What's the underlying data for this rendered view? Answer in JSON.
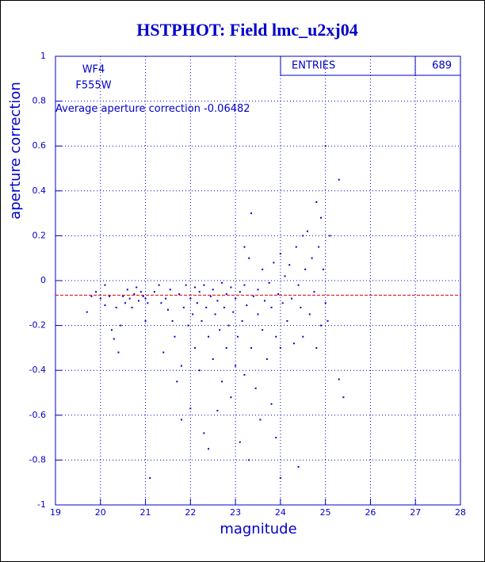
{
  "chart_data": {
    "type": "scatter",
    "title": "HSTPHOT: Field lmc_u2xj04",
    "x_label": "magnitude",
    "y_label": "aperture correction",
    "filter_labels": [
      "WF4",
      "F555W"
    ],
    "average_label": "Average aperture correction",
    "average": -0.06482,
    "average_line_color": "#dd0000",
    "stats_label": "ENTRIES",
    "entries": 689,
    "color": "#0000cc",
    "grid": true,
    "xlim": [
      19,
      28
    ],
    "ylim": [
      -1,
      1
    ],
    "xticks": [
      19,
      20,
      21,
      22,
      23,
      24,
      25,
      26,
      27,
      28
    ],
    "yticks": [
      -1,
      -0.8,
      -0.6,
      -0.4,
      -0.2,
      0,
      0.2,
      0.4,
      0.6,
      0.8,
      1
    ],
    "x": [
      19.7,
      19.8,
      19.9,
      20.0,
      20.1,
      20.1,
      20.2,
      20.25,
      20.3,
      20.35,
      20.4,
      20.45,
      20.5,
      20.55,
      20.6,
      20.65,
      20.7,
      20.75,
      20.8,
      20.85,
      20.9,
      20.95,
      21.0,
      21.0,
      21.05,
      21.1,
      21.2,
      21.3,
      21.35,
      21.4,
      21.45,
      21.5,
      21.55,
      21.6,
      21.65,
      21.7,
      21.75,
      21.8,
      21.8,
      21.85,
      21.9,
      21.95,
      22.0,
      22.0,
      22.05,
      22.1,
      22.1,
      22.15,
      22.2,
      22.2,
      22.25,
      22.3,
      22.3,
      22.35,
      22.4,
      22.4,
      22.45,
      22.5,
      22.5,
      22.55,
      22.6,
      22.6,
      22.65,
      22.7,
      22.7,
      22.75,
      22.8,
      22.8,
      22.85,
      22.9,
      22.9,
      22.95,
      23.0,
      23.0,
      23.05,
      23.1,
      23.1,
      23.15,
      23.2,
      23.2,
      23.25,
      23.3,
      23.3,
      23.35,
      23.4,
      23.45,
      23.5,
      23.5,
      23.55,
      23.6,
      23.6,
      23.65,
      23.7,
      23.75,
      23.8,
      23.8,
      23.85,
      23.9,
      23.9,
      23.95,
      24.0,
      24.0,
      24.0,
      24.05,
      23.35,
      23.2,
      24.1,
      24.15,
      24.2,
      24.25,
      24.3,
      24.35,
      24.4,
      24.45,
      24.5,
      24.5,
      24.55,
      24.6,
      24.65,
      24.7,
      24.75,
      24.8,
      24.8,
      24.85,
      24.9,
      24.9,
      24.95,
      25.0,
      25.0,
      25.05,
      25.1,
      25.3,
      25.3,
      25.4,
      24.4
    ],
    "values": [
      -0.14,
      -0.07,
      -0.05,
      -0.08,
      -0.11,
      -0.02,
      -0.07,
      -0.22,
      -0.26,
      -0.12,
      -0.32,
      -0.2,
      -0.07,
      -0.1,
      -0.04,
      -0.08,
      -0.12,
      -0.06,
      -0.03,
      -0.09,
      -0.05,
      -0.07,
      -0.18,
      -0.08,
      -0.1,
      -0.88,
      -0.05,
      -0.02,
      -0.1,
      -0.32,
      -0.08,
      -0.13,
      -0.04,
      -0.18,
      -0.25,
      -0.45,
      -0.06,
      -0.38,
      -0.62,
      -0.12,
      -0.02,
      -0.2,
      -0.08,
      -0.57,
      -0.15,
      -0.03,
      -0.3,
      -0.1,
      -0.05,
      -0.4,
      -0.18,
      -0.68,
      -0.02,
      -0.12,
      -0.75,
      -0.25,
      -0.07,
      -0.35,
      -0.04,
      -0.15,
      -0.58,
      -0.09,
      -0.22,
      -0.01,
      -0.45,
      -0.12,
      -0.3,
      -0.06,
      -0.2,
      -0.52,
      -0.03,
      -0.14,
      -0.08,
      -0.38,
      -0.25,
      -0.72,
      -0.05,
      -0.18,
      -0.42,
      -0.02,
      -0.11,
      0.1,
      -0.8,
      -0.3,
      -0.07,
      -0.48,
      -0.15,
      -0.04,
      -0.62,
      -0.22,
      0.05,
      -0.09,
      -0.35,
      -0.01,
      -0.55,
      -0.12,
      0.08,
      -0.25,
      -0.7,
      -0.06,
      0.12,
      -0.88,
      -0.3,
      -0.1,
      0.3,
      0.15,
      0.02,
      -0.18,
      0.07,
      -0.08,
      -0.28,
      0.15,
      -0.02,
      -0.12,
      0.2,
      -0.25,
      0.05,
      0.22,
      -0.15,
      0.1,
      -0.05,
      0.35,
      -0.3,
      0.15,
      0.28,
      -0.2,
      0.05,
      0.6,
      -0.1,
      -0.18,
      0.2,
      0.45,
      -0.44,
      -0.52,
      -0.83
    ]
  }
}
